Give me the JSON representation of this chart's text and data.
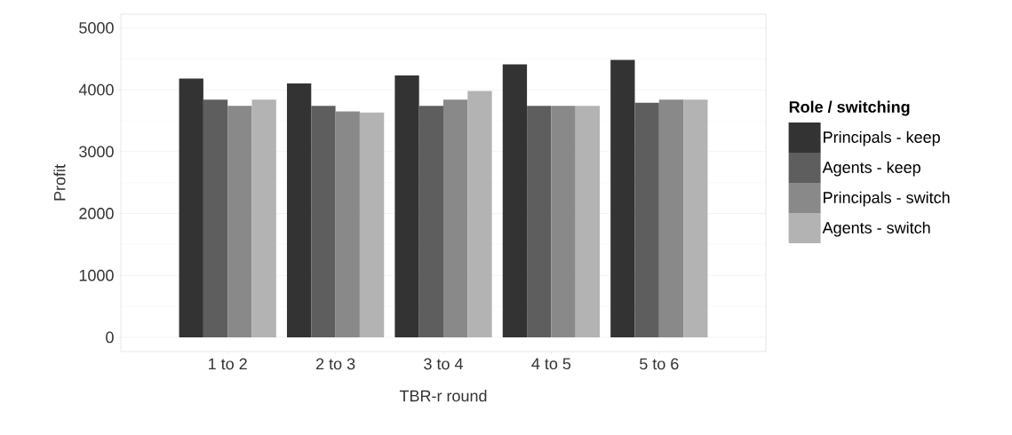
{
  "chart_data": {
    "type": "bar",
    "xlabel": "TBR-r round",
    "ylabel": "Profit",
    "legend_title": "Role / switching",
    "categories": [
      "1 to 2",
      "2 to 3",
      "3 to 4",
      "4 to 5",
      "5 to 6"
    ],
    "series": [
      {
        "name": "Principals - keep",
        "color": "#333333",
        "values": [
          4180,
          4100,
          4230,
          4410,
          4480
        ]
      },
      {
        "name": "Agents - keep",
        "color": "#5e5e5e",
        "values": [
          3840,
          3740,
          3740,
          3740,
          3790
        ]
      },
      {
        "name": "Principals - switch",
        "color": "#898989",
        "values": [
          3740,
          3650,
          3840,
          3740,
          3840
        ]
      },
      {
        "name": "Agents - switch",
        "color": "#b3b3b3",
        "values": [
          3840,
          3630,
          3980,
          3740,
          3840
        ]
      }
    ],
    "ylim": [
      -230,
      5220
    ],
    "yticks": [
      0,
      1000,
      2000,
      3000,
      4000,
      5000
    ],
    "grid": "y",
    "legend": "right"
  }
}
